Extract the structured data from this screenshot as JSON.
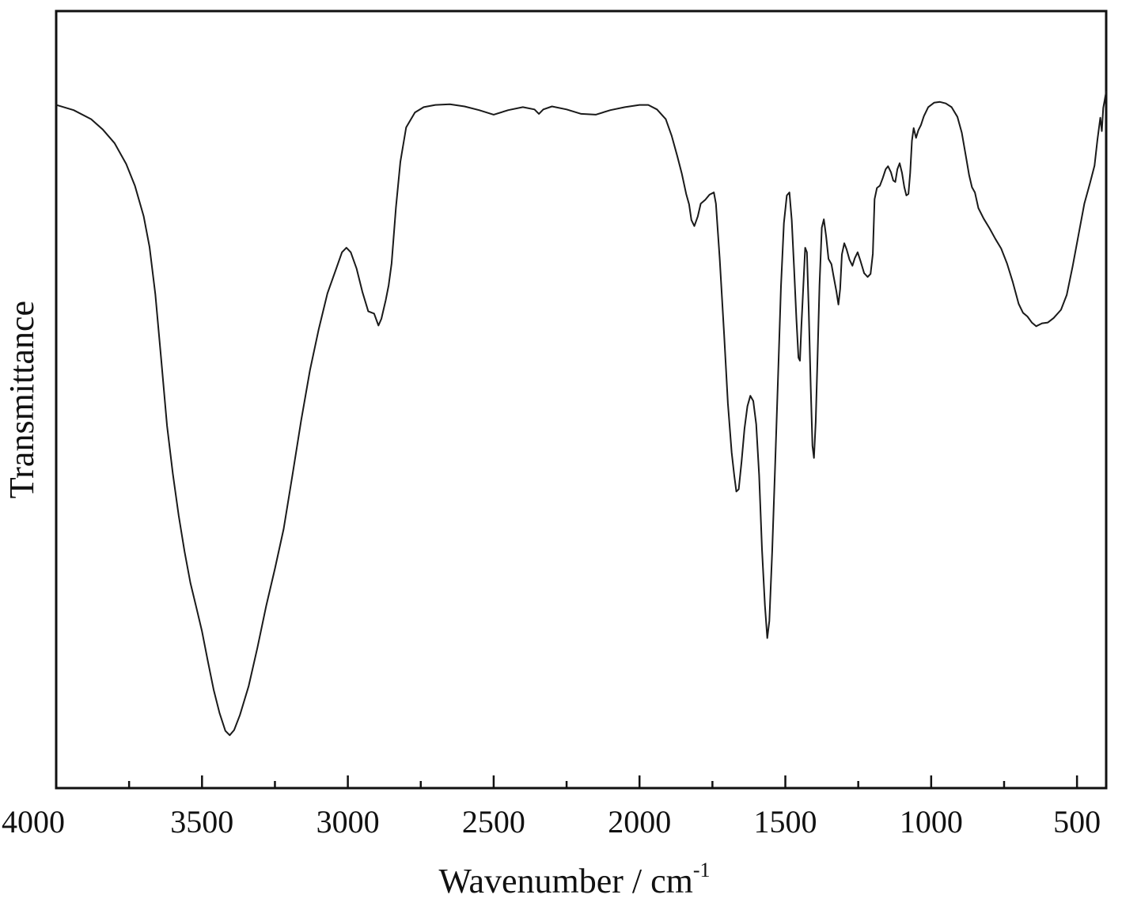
{
  "chart_data": {
    "type": "line",
    "title": "",
    "xlabel": "Wavenumber / cm",
    "xlabel_superscript": "-1",
    "ylabel": "Transmittance",
    "xlim": [
      4000,
      400
    ],
    "ylim": [
      0,
      100
    ],
    "x_reversed": true,
    "y_ticks_labeled": false,
    "grid": false,
    "legend": "none",
    "line_color": "#1a1a1a",
    "x_major_ticks": [
      4000,
      3500,
      3000,
      2500,
      2000,
      1500,
      1000,
      500
    ],
    "x_tick_labels": [
      "4000",
      "3500",
      "3000",
      "2500",
      "2000",
      "1500",
      "1000",
      "500"
    ],
    "x_minor_ticks": [
      3750,
      3250,
      2750,
      2250,
      1750,
      1250,
      750
    ],
    "series": [
      {
        "points": [
          [
            4000,
            90.2
          ],
          [
            3940,
            89.5
          ],
          [
            3880,
            88.3
          ],
          [
            3840,
            86.9
          ],
          [
            3800,
            85.1
          ],
          [
            3760,
            82.3
          ],
          [
            3730,
            79.4
          ],
          [
            3700,
            75.3
          ],
          [
            3680,
            71.2
          ],
          [
            3660,
            64.9
          ],
          [
            3640,
            56.2
          ],
          [
            3620,
            47.3
          ],
          [
            3600,
            40.9
          ],
          [
            3580,
            35.3
          ],
          [
            3560,
            30.5
          ],
          [
            3540,
            26.3
          ],
          [
            3520,
            23.1
          ],
          [
            3500,
            19.8
          ],
          [
            3480,
            15.8
          ],
          [
            3460,
            12.0
          ],
          [
            3440,
            8.9
          ],
          [
            3420,
            6.5
          ],
          [
            3405,
            5.9
          ],
          [
            3390,
            6.6
          ],
          [
            3370,
            8.6
          ],
          [
            3340,
            12.5
          ],
          [
            3310,
            17.6
          ],
          [
            3280,
            23.2
          ],
          [
            3250,
            28.2
          ],
          [
            3220,
            33.5
          ],
          [
            3190,
            40.7
          ],
          [
            3160,
            48.0
          ],
          [
            3130,
            54.7
          ],
          [
            3100,
            60.2
          ],
          [
            3070,
            65.0
          ],
          [
            3040,
            68.3
          ],
          [
            3020,
            70.5
          ],
          [
            3005,
            71.1
          ],
          [
            2990,
            70.5
          ],
          [
            2970,
            68.3
          ],
          [
            2950,
            65.2
          ],
          [
            2930,
            62.6
          ],
          [
            2910,
            62.3
          ],
          [
            2895,
            60.7
          ],
          [
            2885,
            61.6
          ],
          [
            2870,
            64.1
          ],
          [
            2860,
            66.1
          ],
          [
            2850,
            69.0
          ],
          [
            2835,
            76.5
          ],
          [
            2820,
            82.6
          ],
          [
            2800,
            87.2
          ],
          [
            2770,
            89.2
          ],
          [
            2740,
            89.9
          ],
          [
            2700,
            90.2
          ],
          [
            2650,
            90.3
          ],
          [
            2600,
            90.0
          ],
          [
            2550,
            89.5
          ],
          [
            2500,
            88.9
          ],
          [
            2450,
            89.5
          ],
          [
            2400,
            89.9
          ],
          [
            2360,
            89.6
          ],
          [
            2345,
            89.0
          ],
          [
            2330,
            89.6
          ],
          [
            2300,
            90.0
          ],
          [
            2250,
            89.6
          ],
          [
            2200,
            89.0
          ],
          [
            2150,
            88.9
          ],
          [
            2100,
            89.5
          ],
          [
            2050,
            89.9
          ],
          [
            2000,
            90.2
          ],
          [
            1970,
            90.2
          ],
          [
            1940,
            89.6
          ],
          [
            1910,
            88.3
          ],
          [
            1890,
            86.1
          ],
          [
            1870,
            83.3
          ],
          [
            1855,
            81.0
          ],
          [
            1840,
            78.3
          ],
          [
            1830,
            76.9
          ],
          [
            1822,
            74.8
          ],
          [
            1812,
            74.0
          ],
          [
            1800,
            75.3
          ],
          [
            1790,
            77.0
          ],
          [
            1775,
            77.5
          ],
          [
            1760,
            78.2
          ],
          [
            1745,
            78.5
          ],
          [
            1738,
            77.0
          ],
          [
            1725,
            69.6
          ],
          [
            1710,
            59.6
          ],
          [
            1697,
            50.3
          ],
          [
            1684,
            43.7
          ],
          [
            1675,
            40.6
          ],
          [
            1668,
            38.5
          ],
          [
            1660,
            38.8
          ],
          [
            1650,
            42.5
          ],
          [
            1640,
            46.9
          ],
          [
            1630,
            49.9
          ],
          [
            1620,
            51.3
          ],
          [
            1610,
            50.6
          ],
          [
            1600,
            47.5
          ],
          [
            1590,
            40.7
          ],
          [
            1580,
            30.8
          ],
          [
            1570,
            23.3
          ],
          [
            1562,
            18.9
          ],
          [
            1555,
            21.2
          ],
          [
            1545,
            30.5
          ],
          [
            1535,
            41.9
          ],
          [
            1525,
            53.8
          ],
          [
            1515,
            65.9
          ],
          [
            1505,
            74.4
          ],
          [
            1495,
            78.1
          ],
          [
            1486,
            78.5
          ],
          [
            1478,
            74.8
          ],
          [
            1470,
            68.3
          ],
          [
            1462,
            61.6
          ],
          [
            1455,
            56.4
          ],
          [
            1450,
            56.0
          ],
          [
            1445,
            60.6
          ],
          [
            1438,
            66.3
          ],
          [
            1432,
            71.1
          ],
          [
            1426,
            70.5
          ],
          [
            1420,
            63.1
          ],
          [
            1413,
            52.5
          ],
          [
            1407,
            44.6
          ],
          [
            1402,
            43.0
          ],
          [
            1396,
            47.8
          ],
          [
            1390,
            56.0
          ],
          [
            1383,
            66.1
          ],
          [
            1375,
            73.8
          ],
          [
            1368,
            74.9
          ],
          [
            1360,
            72.6
          ],
          [
            1352,
            69.6
          ],
          [
            1342,
            68.9
          ],
          [
            1335,
            67.4
          ],
          [
            1325,
            65.3
          ],
          [
            1318,
            63.5
          ],
          [
            1312,
            65.6
          ],
          [
            1306,
            70.2
          ],
          [
            1298,
            71.7
          ],
          [
            1290,
            70.9
          ],
          [
            1280,
            69.5
          ],
          [
            1270,
            68.7
          ],
          [
            1262,
            69.7
          ],
          [
            1252,
            70.5
          ],
          [
            1242,
            69.3
          ],
          [
            1230,
            67.7
          ],
          [
            1218,
            67.2
          ],
          [
            1208,
            67.6
          ],
          [
            1200,
            70.3
          ],
          [
            1194,
            77.6
          ],
          [
            1186,
            79.1
          ],
          [
            1176,
            79.4
          ],
          [
            1166,
            80.4
          ],
          [
            1156,
            81.6
          ],
          [
            1148,
            82.0
          ],
          [
            1138,
            81.2
          ],
          [
            1130,
            80.1
          ],
          [
            1123,
            79.9
          ],
          [
            1116,
            81.6
          ],
          [
            1108,
            82.4
          ],
          [
            1100,
            81.1
          ],
          [
            1092,
            79.2
          ],
          [
            1085,
            78.1
          ],
          [
            1078,
            78.3
          ],
          [
            1072,
            81.1
          ],
          [
            1066,
            85.4
          ],
          [
            1060,
            87.1
          ],
          [
            1052,
            85.8
          ],
          [
            1044,
            86.8
          ],
          [
            1035,
            87.5
          ],
          [
            1025,
            88.7
          ],
          [
            1010,
            89.9
          ],
          [
            990,
            90.5
          ],
          [
            970,
            90.6
          ],
          [
            950,
            90.4
          ],
          [
            930,
            89.9
          ],
          [
            910,
            88.6
          ],
          [
            895,
            86.5
          ],
          [
            880,
            83.1
          ],
          [
            870,
            80.8
          ],
          [
            860,
            79.2
          ],
          [
            850,
            78.5
          ],
          [
            838,
            76.4
          ],
          [
            820,
            75.0
          ],
          [
            800,
            73.7
          ],
          [
            780,
            72.3
          ],
          [
            760,
            71.0
          ],
          [
            740,
            69.0
          ],
          [
            720,
            66.5
          ],
          [
            700,
            63.6
          ],
          [
            685,
            62.4
          ],
          [
            670,
            61.9
          ],
          [
            655,
            61.1
          ],
          [
            640,
            60.6
          ],
          [
            620,
            61.0
          ],
          [
            600,
            61.1
          ],
          [
            580,
            61.7
          ],
          [
            555,
            62.8
          ],
          [
            535,
            64.8
          ],
          [
            515,
            68.6
          ],
          [
            495,
            72.8
          ],
          [
            475,
            77.0
          ],
          [
            455,
            79.8
          ],
          [
            440,
            82.1
          ],
          [
            430,
            85.5
          ],
          [
            420,
            88.5
          ],
          [
            415,
            86.7
          ],
          [
            410,
            89.8
          ],
          [
            405,
            90.9
          ],
          [
            400,
            92.0
          ]
        ]
      }
    ]
  }
}
